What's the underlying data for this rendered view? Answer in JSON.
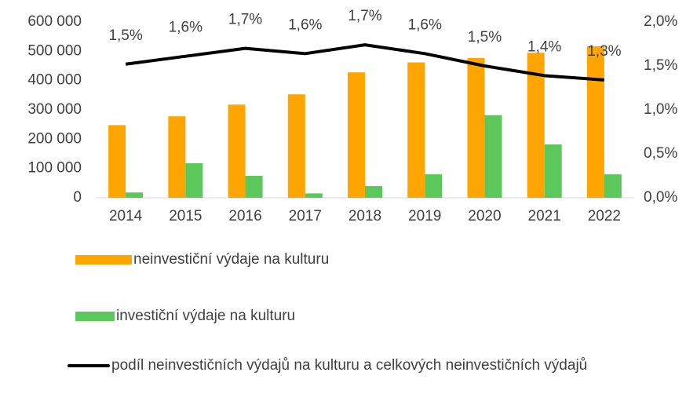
{
  "chart_data": {
    "type": "bar_line",
    "categories": [
      "2014",
      "2015",
      "2016",
      "2017",
      "2018",
      "2019",
      "2020",
      "2021",
      "2022"
    ],
    "series": [
      {
        "name": "neinvestiční výdaje na kulturu",
        "type": "bar",
        "color": "#ffa500",
        "values": [
          248000,
          278000,
          318000,
          353000,
          428000,
          462000,
          477000,
          495000,
          517000
        ]
      },
      {
        "name": "investiční výdaje na kulturu",
        "type": "bar",
        "color": "#5cc85c",
        "values": [
          18000,
          118000,
          75000,
          15000,
          40000,
          80000,
          282000,
          182000,
          80000
        ]
      },
      {
        "name": "podíl neinvestičních výdajů na kulturu a celkových neinvestičních výdajů",
        "type": "line",
        "color": "#000000",
        "axis": "y2",
        "values": [
          1.52,
          1.61,
          1.7,
          1.64,
          1.74,
          1.64,
          1.5,
          1.39,
          1.34
        ],
        "value_labels": [
          "1,5%",
          "1,6%",
          "1,7%",
          "1,6%",
          "1,7%",
          "1,6%",
          "1,5%",
          "1,4%",
          "1,3%"
        ]
      }
    ],
    "ylim": [
      0,
      600000
    ],
    "yticks": [
      0,
      {
        "value": 100000,
        "label": "100 000"
      },
      {
        "value": 200000,
        "label": "200 000"
      },
      {
        "value": 300000,
        "label": "300 000"
      },
      {
        "value": 400000,
        "label": "400 000"
      },
      {
        "value": 500000,
        "label": "500 000"
      },
      {
        "value": 600000,
        "label": "600 000"
      }
    ],
    "y2lim": [
      0,
      2.0
    ],
    "y2ticks": [
      {
        "value": 0,
        "label": "0,0%"
      },
      {
        "value": 0.5,
        "label": "0,5%"
      },
      {
        "value": 1.0,
        "label": "1,0%"
      },
      {
        "value": 1.5,
        "label": "1,5%"
      },
      {
        "value": 2.0,
        "label": "2,0%"
      }
    ],
    "grid": false,
    "legend": "bottom"
  }
}
